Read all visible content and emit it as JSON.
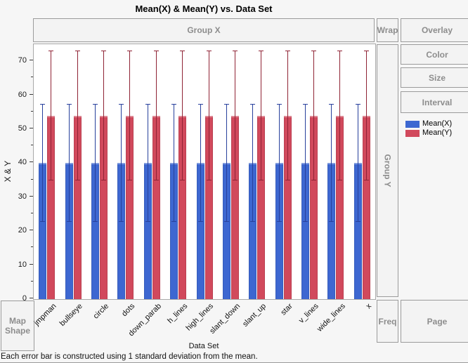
{
  "title": "Mean(X) & Mean(Y) vs. Data Set",
  "drop_zones": {
    "group_x": "Group X",
    "wrap": "Wrap",
    "overlay": "Overlay",
    "color": "Color",
    "size": "Size",
    "interval": "Interval",
    "group_y": "Group Y",
    "map_shape": "Map Shape",
    "freq": "Freq",
    "page": "Page"
  },
  "legend": [
    {
      "label": "Mean(X)",
      "color": "#3d67d1"
    },
    {
      "label": "Mean(Y)",
      "color": "#d1495c"
    }
  ],
  "footnote": "Each error bar is constructed using 1 standard deviation from the mean.",
  "chart_data": {
    "type": "bar",
    "title": "Mean(X) & Mean(Y) vs. Data Set",
    "xlabel": "Data Set",
    "ylabel": "X & Y",
    "ylim": [
      0,
      75
    ],
    "yticks": [
      0,
      10,
      20,
      30,
      40,
      50,
      60,
      70
    ],
    "minor_tick_step": 5,
    "grid": false,
    "legend_position": "right",
    "error_bars": "1 standard deviation from the mean",
    "categories": [
      "jmpman",
      "bullseye",
      "circle",
      "dots",
      "down_parab",
      "h_lines",
      "high_lines",
      "slant_down",
      "slant_up",
      "star",
      "v_lines",
      "wide_lines",
      "x"
    ],
    "series": [
      {
        "name": "Mean(X)",
        "color": "#3d67d1",
        "error_color": "#27409c",
        "values": [
          40,
          40,
          40,
          40,
          40,
          40,
          40,
          40,
          40,
          40,
          40,
          40,
          40
        ],
        "sd": [
          17.3,
          17.3,
          17.3,
          17.3,
          17.3,
          17.3,
          17.3,
          17.3,
          17.3,
          17.3,
          17.3,
          17.3,
          17.3
        ]
      },
      {
        "name": "Mean(Y)",
        "color": "#d1495c",
        "error_color": "#8f2335",
        "values": [
          54,
          54,
          54,
          54,
          54,
          54,
          54,
          54,
          54,
          54,
          54,
          54,
          54
        ],
        "sd": [
          19,
          19,
          19,
          19,
          19,
          19,
          19,
          19,
          19,
          19,
          19,
          19,
          19
        ]
      }
    ]
  }
}
